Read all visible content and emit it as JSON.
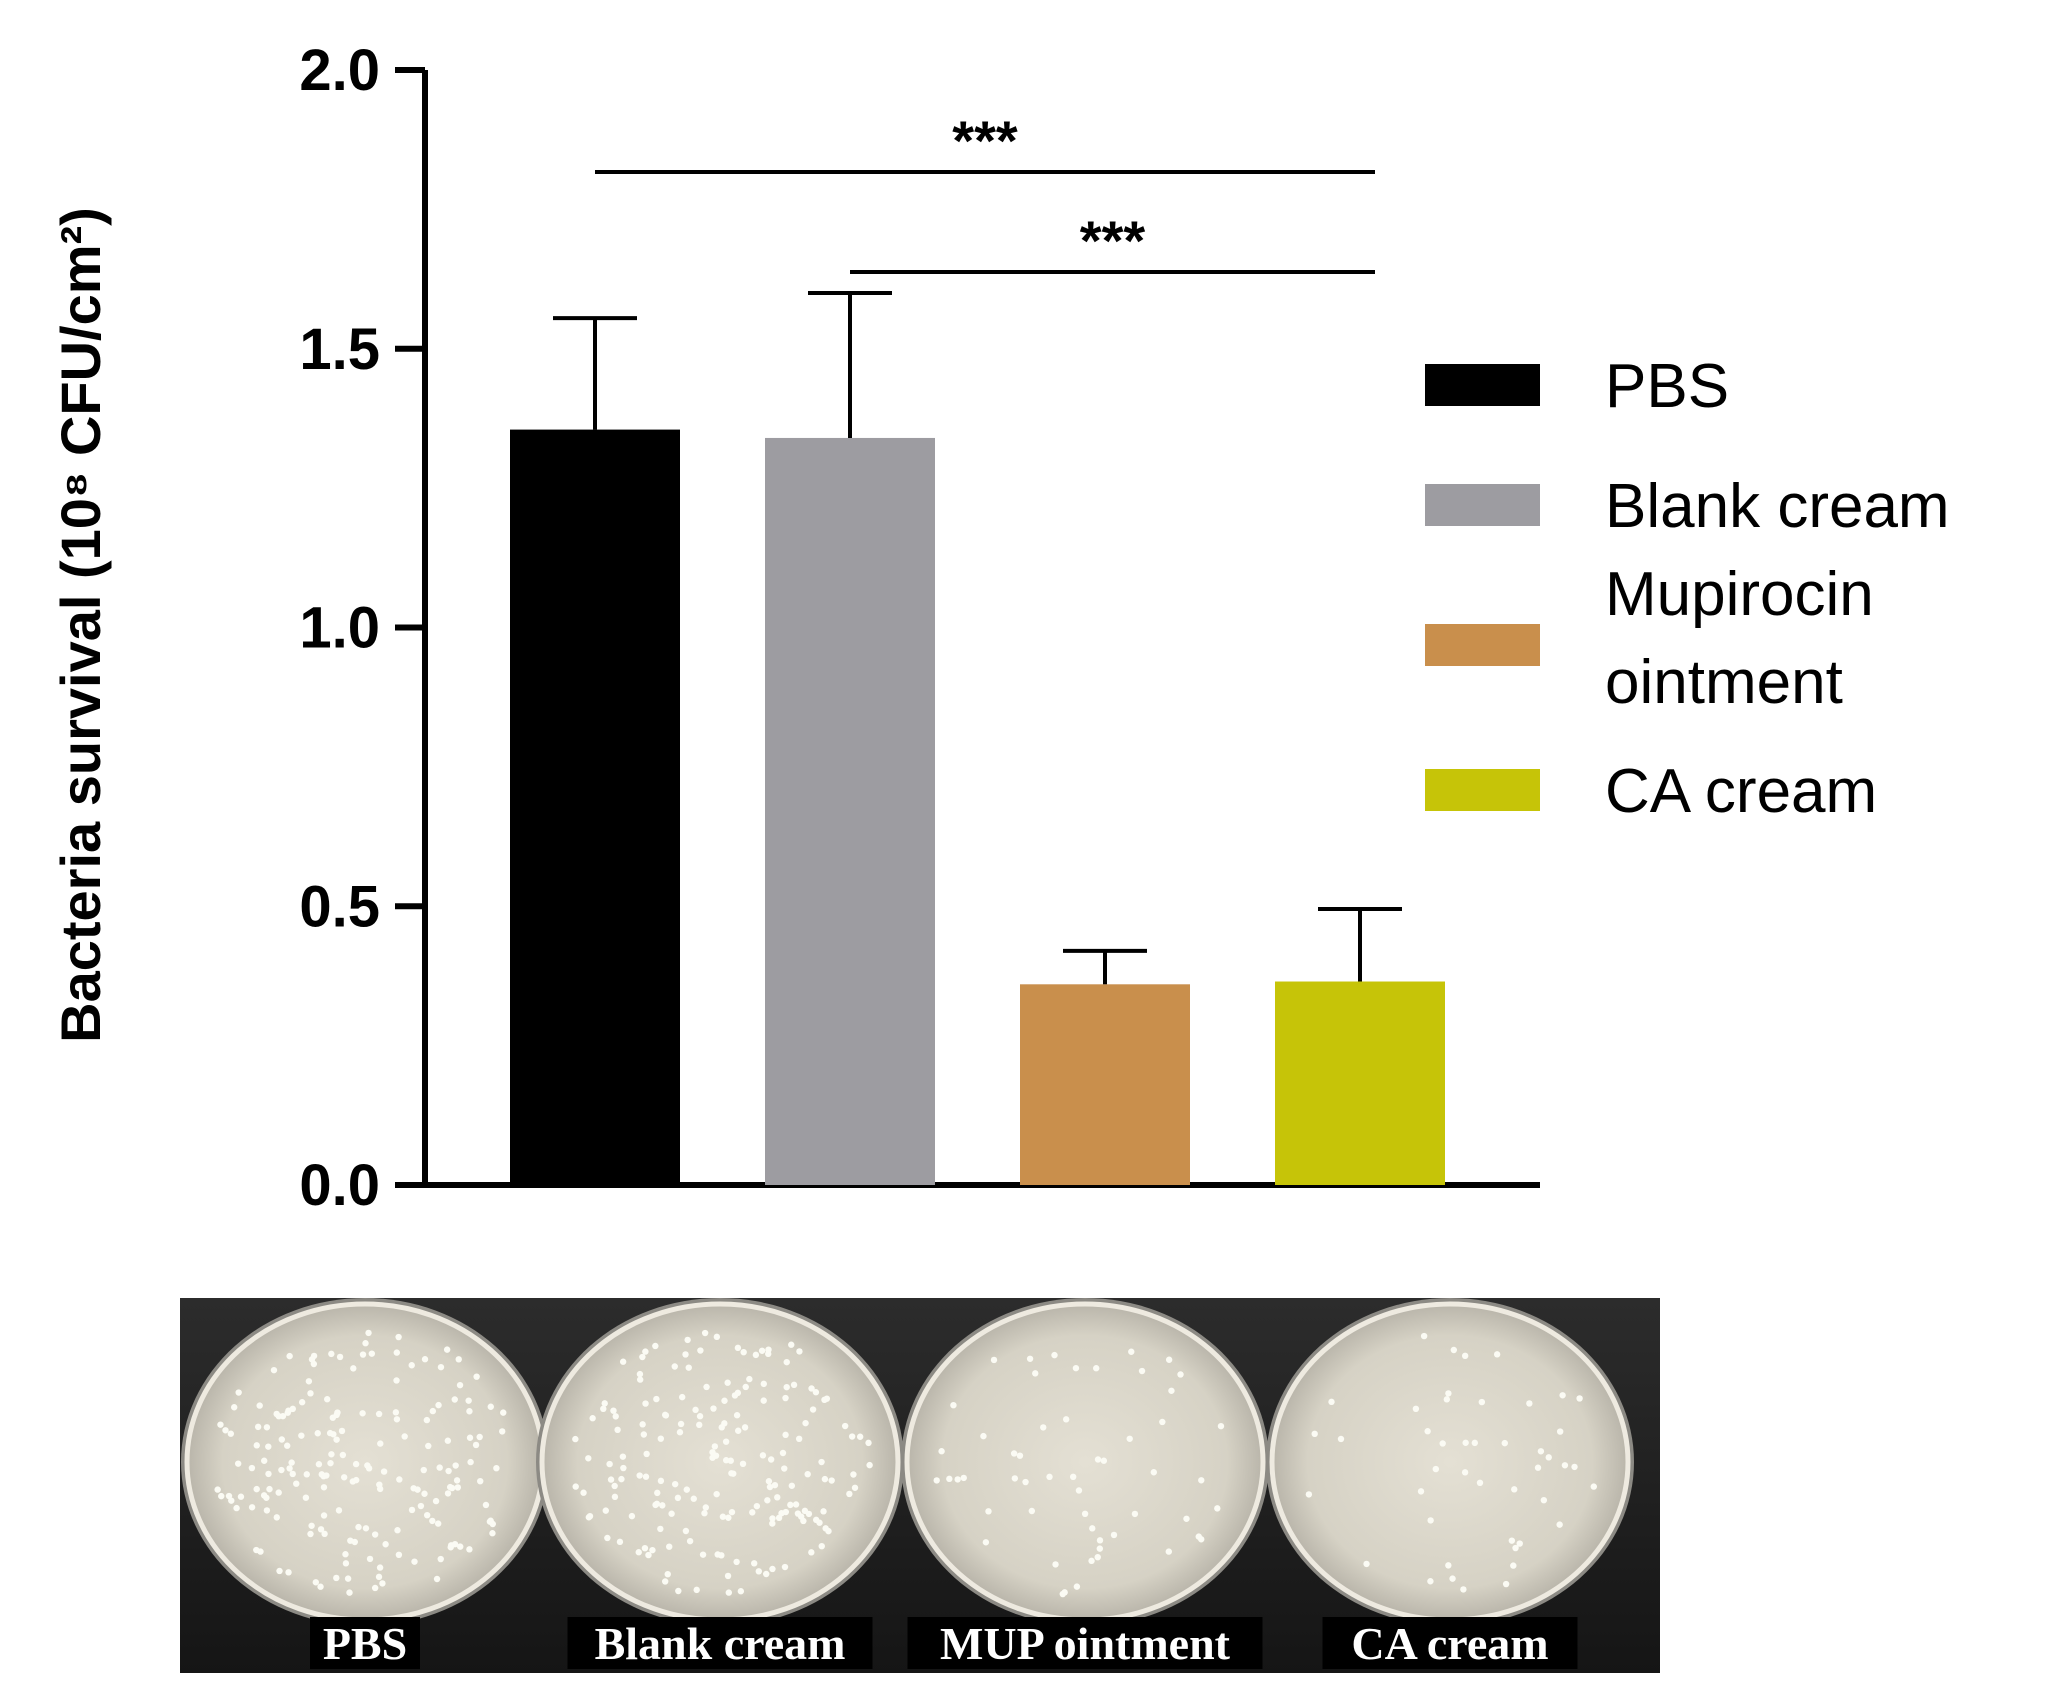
{
  "chart_data": {
    "type": "bar",
    "categories": [
      "PBS",
      "Blank cream",
      "Mupirocin ointment",
      "CA cream"
    ],
    "values": [
      1.355,
      1.34,
      0.36,
      0.365
    ],
    "error_upper": [
      1.555,
      1.6,
      0.42,
      0.495
    ],
    "ylim": [
      0,
      2.0
    ],
    "yticks": [
      "0.0",
      "0.5",
      "1.0",
      "1.5",
      "2.0"
    ],
    "ylabel": "Bacteria survival (10⁸ CFU/cm²)",
    "legend": {
      "placement": "right",
      "entries": [
        {
          "name": "PBS",
          "color": "#000000"
        },
        {
          "name": "Blank cream",
          "color": "#9d9ca1"
        },
        {
          "name": "Mupirocin ointment",
          "color": "#c98f4c"
        },
        {
          "name": "CA cream",
          "color": "#c6c408"
        }
      ]
    },
    "significance": [
      {
        "from": "PBS",
        "to": "CA cream",
        "label": "***"
      },
      {
        "from": "Blank cream",
        "to": "CA cream",
        "label": "***"
      }
    ],
    "grid": false
  },
  "plates": {
    "labels": [
      "PBS",
      "Blank cream",
      "MUP ointment",
      "CA cream"
    ],
    "colony_density": [
      1,
      1,
      0.3,
      0.25
    ]
  }
}
